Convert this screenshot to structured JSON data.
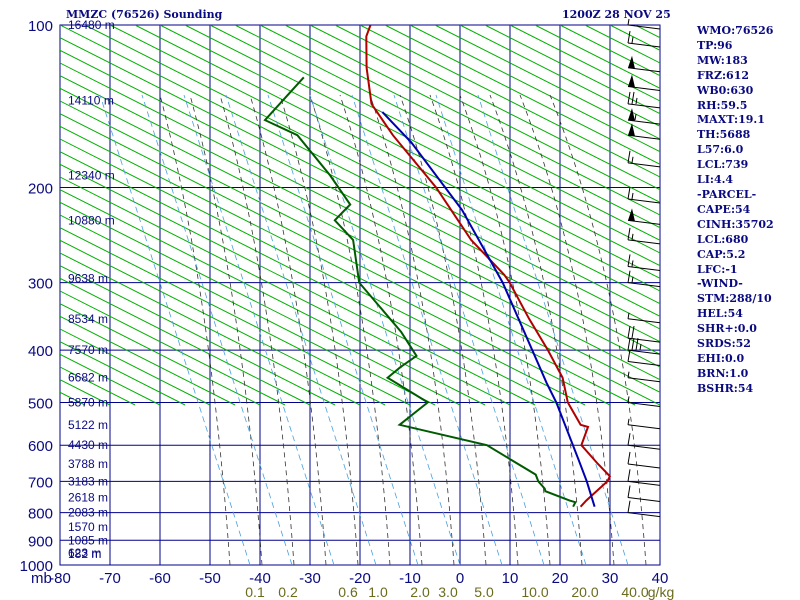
{
  "header": {
    "title": "MMZC (76526) Sounding",
    "time": "1200Z 28 NOV 25"
  },
  "stats": [
    "WMO:76526",
    "TP:96",
    "MW:183",
    "FRZ:612",
    "WB0:630",
    "RH:59.5",
    "MAXT:19.1",
    "TH:5688",
    "L57:6.0",
    "LCL:739",
    "LI:4.4",
    "-PARCEL-",
    "CAPE:54",
    "CINH:35702",
    "LCL:680",
    "CAP:5.2",
    "LFC:-1",
    "-WIND-",
    "STM:288/10",
    "HEL:54",
    "SHR+:0.0",
    "SRDS:52",
    "EHI:0.0",
    "BRN:1.0",
    "BSHR:54"
  ],
  "chart_data": {
    "type": "skew-t",
    "pressure_axis": {
      "unit_label": "mb",
      "ticks": [
        100,
        200,
        300,
        400,
        500,
        600,
        700,
        800,
        900,
        1000
      ],
      "range": [
        100,
        1000
      ],
      "scale": "log"
    },
    "temperature_axis": {
      "ticks": [
        -80,
        -70,
        -60,
        -50,
        -40,
        -30,
        -20,
        -10,
        0,
        10,
        20,
        30,
        40
      ],
      "labels": [
        "-80",
        "-70",
        "-60",
        "-50",
        "-40",
        "-30",
        "-20",
        "-10",
        "0",
        "10",
        "20",
        "30",
        "40"
      ]
    },
    "height_labels": [
      "16480 m",
      "14110 m",
      "12340 m",
      "10880 m",
      "9638 m",
      "8534 m",
      "7570 m",
      "6682 m",
      "5870 m",
      "5122 m",
      "4430 m",
      "3788 m",
      "3183 m",
      "2618 m",
      "2083 m",
      "1570 m",
      "1085 m",
      "623 m",
      "182 m"
    ],
    "mixing_ratio_labels": [
      "0.1",
      "0.2",
      "0.6",
      "1.0",
      "2.0",
      "3.0",
      "5.0",
      "10.0",
      "20.0",
      "40.0"
    ],
    "mixing_ratio_unit": "g/kg",
    "colors": {
      "grid": "#00008b",
      "dry_adiabat": "#00b000",
      "moist_adiabat": "#333333",
      "mixing_ratio": "#4aa0dd",
      "temperature": "#b00000",
      "dewpoint": "#005a00",
      "parcel": "#0000b0",
      "wind": "#000000",
      "label_text": "#0a0a80",
      "mixing_label_text": "#6b6b1e"
    },
    "series": [
      {
        "name": "temperature",
        "points": [
          [
            18.3,
            780
          ],
          [
            18.8,
            760
          ],
          [
            21.1,
            700
          ],
          [
            21.1,
            685
          ],
          [
            17.5,
            650
          ],
          [
            12.3,
            600
          ],
          [
            11.8,
            555
          ],
          [
            10.1,
            550
          ],
          [
            5.3,
            500
          ],
          [
            1.8,
            450
          ],
          [
            -3.9,
            400
          ],
          [
            -10.8,
            350
          ],
          [
            -18.3,
            300
          ],
          [
            -20.2,
            290
          ],
          [
            -30.3,
            250
          ],
          [
            -42.5,
            200
          ],
          [
            -56.4,
            160
          ],
          [
            -63.8,
            140
          ],
          [
            -68.4,
            120
          ],
          [
            -71.6,
            105
          ],
          [
            -71.9,
            100
          ]
        ]
      },
      {
        "name": "dewpoint",
        "points": [
          [
            16.8,
            780
          ],
          [
            16.8,
            765
          ],
          [
            15.5,
            760
          ],
          [
            9.7,
            730
          ],
          [
            9.3,
            722
          ],
          [
            7.3,
            700
          ],
          [
            6.1,
            680
          ],
          [
            -6.6,
            600
          ],
          [
            -26.1,
            550
          ],
          [
            -22.7,
            500
          ],
          [
            -33.2,
            450
          ],
          [
            -31.7,
            430
          ],
          [
            -29.6,
            410
          ],
          [
            -35.1,
            370
          ],
          [
            -48.4,
            300
          ],
          [
            -53.9,
            250
          ],
          [
            -59.5,
            230
          ],
          [
            -58.0,
            215
          ],
          [
            -64.9,
            190
          ],
          [
            -75.5,
            160
          ],
          [
            -83.5,
            150
          ],
          [
            -80,
            125
          ]
        ]
      },
      {
        "name": "parcel",
        "points": [
          [
            21.1,
            780
          ],
          [
            17.0,
            700
          ],
          [
            13.3,
            640
          ],
          [
            3.0,
            500
          ],
          [
            -0.9,
            460
          ],
          [
            -19.7,
            300
          ],
          [
            -35.1,
            220
          ],
          [
            -52.0,
            165
          ],
          [
            -60.8,
            145
          ]
        ]
      }
    ],
    "winds": [
      {
        "p": 100,
        "spd": 5
      },
      {
        "p": 108,
        "spd": 15
      },
      {
        "p": 120,
        "spd": 50
      },
      {
        "p": 130,
        "spd": 50
      },
      {
        "p": 140,
        "spd": 25
      },
      {
        "p": 150,
        "spd": 55
      },
      {
        "p": 160,
        "spd": 50
      },
      {
        "p": 180,
        "spd": 15
      },
      {
        "p": 210,
        "spd": 15
      },
      {
        "p": 230,
        "spd": 50
      },
      {
        "p": 250,
        "spd": 15
      },
      {
        "p": 280,
        "spd": 15
      },
      {
        "p": 300,
        "spd": 15
      },
      {
        "p": 350,
        "spd": 5
      },
      {
        "p": 380,
        "spd": 20
      },
      {
        "p": 400,
        "spd": 35
      },
      {
        "p": 420,
        "spd": 10
      },
      {
        "p": 450,
        "spd": 5
      },
      {
        "p": 500,
        "spd": 5
      },
      {
        "p": 550,
        "spd": 5
      },
      {
        "p": 600,
        "spd": 10
      },
      {
        "p": 650,
        "spd": 10
      },
      {
        "p": 700,
        "spd": 10
      },
      {
        "p": 750,
        "spd": 10
      },
      {
        "p": 800,
        "spd": 10
      }
    ]
  }
}
